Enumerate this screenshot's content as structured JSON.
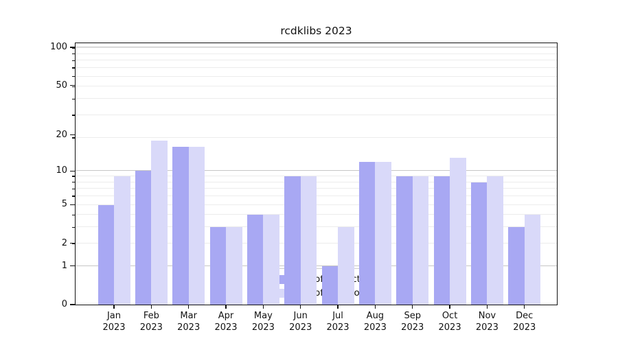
{
  "chart_data": {
    "type": "bar",
    "title": "rcdklibs 2023",
    "categories": [
      "Jan 2023",
      "Feb 2023",
      "Mar 2023",
      "Apr 2023",
      "May 2023",
      "Jun 2023",
      "Jul 2023",
      "Aug 2023",
      "Sep 2023",
      "Oct 2023",
      "Nov 2023",
      "Dec 2023"
    ],
    "series": [
      {
        "name": "Nb of distinct IPs",
        "color": "#a8a8f3",
        "values": [
          5,
          10,
          16,
          3,
          4,
          9,
          1,
          12,
          9,
          9,
          8,
          3
        ]
      },
      {
        "name": "Nb of downloads",
        "color": "#d9d9f9",
        "values": [
          9,
          18,
          16,
          3,
          4,
          9,
          3,
          12,
          9,
          13,
          9,
          4
        ]
      }
    ],
    "yscale": "log1p",
    "ylim": [
      0,
      108
    ],
    "y_ticks": [
      0,
      1,
      2,
      5,
      10,
      20,
      50,
      100
    ],
    "gridlines": {
      "major": [
        1,
        10,
        100
      ],
      "minor": [
        2,
        3,
        4,
        5,
        6,
        7,
        8,
        9,
        19,
        29,
        39,
        49,
        59,
        69,
        79,
        89,
        99
      ]
    },
    "legend_position": "bottom-center",
    "grid_on": true,
    "xlabel": "",
    "ylabel": ""
  },
  "colors": {
    "grid_major": "#c6c6c6",
    "grid_minor": "#ececec",
    "axis": "#111111",
    "background": "#ffffff"
  }
}
